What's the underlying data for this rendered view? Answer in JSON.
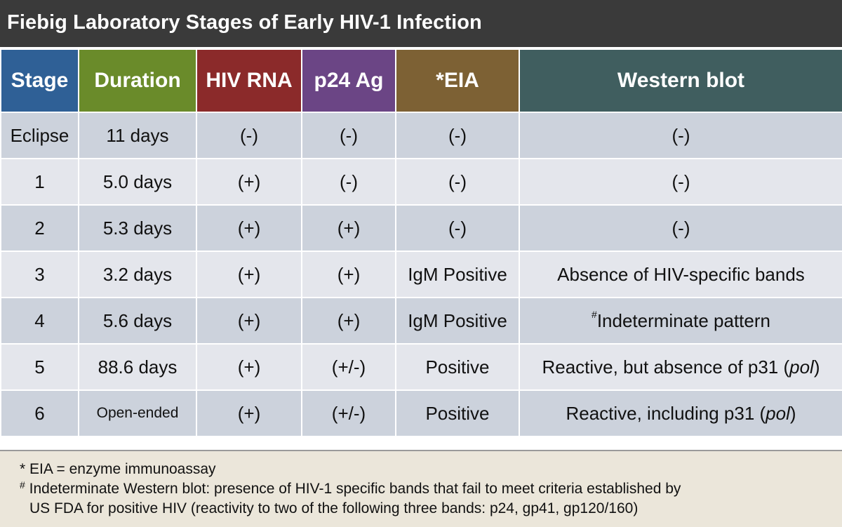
{
  "title": "Fiebig Laboratory Stages of Early HIV-1 Infection",
  "header": {
    "stage": "Stage",
    "duration": "Duration",
    "hiv_rna": "HIV RNA",
    "p24": "p24 Ag",
    "eia": "*EIA",
    "western": "Western blot"
  },
  "header_colors": {
    "stage": "#2f6096",
    "duration": "#6a8b2a",
    "hiv_rna": "#8b2a2a",
    "p24": "#6b4585",
    "eia": "#7d6134",
    "western": "#405e5f"
  },
  "rows": [
    {
      "stage": "Eclipse",
      "duration": "11 days",
      "hiv_rna": "(-)",
      "p24": "(-)",
      "eia": "(-)",
      "western": "(-)"
    },
    {
      "stage": "1",
      "duration": "5.0 days",
      "hiv_rna": "(+)",
      "p24": "(-)",
      "eia": "(-)",
      "western": "(-)"
    },
    {
      "stage": "2",
      "duration": "5.3 days",
      "hiv_rna": "(+)",
      "p24": "(+)",
      "eia": "(-)",
      "western": "(-)"
    },
    {
      "stage": "3",
      "duration": "3.2 days",
      "hiv_rna": "(+)",
      "p24": "(+)",
      "eia": "IgM Positive",
      "western": "Absence of HIV-specific bands"
    },
    {
      "stage": "4",
      "duration": "5.6 days",
      "hiv_rna": "(+)",
      "p24": "(+)",
      "eia": "IgM Positive",
      "western_mark": "#",
      "western": "Indeterminate pattern"
    },
    {
      "stage": "5",
      "duration": "88.6 days",
      "hiv_rna": "(+)",
      "p24": "(+/-)",
      "eia": "Positive",
      "western_pre": "Reactive, but absence of p31 (",
      "western_italic": "pol",
      "western_post": ")"
    },
    {
      "stage": "6",
      "duration": "Open-ended",
      "hiv_rna": "(+)",
      "p24": "(+/-)",
      "eia": "Positive",
      "western_pre": "Reactive, including p31 (",
      "western_italic": "pol",
      "western_post": ")"
    }
  ],
  "footnotes": {
    "eia": "* EIA = enzyme immunoassay",
    "wb_mark": "#",
    "wb_line1": " Indeterminate Western blot: presence of HIV-1 specific bands that fail to meet criteria established by",
    "wb_line2": "US FDA for positive HIV (reactivity to two of the following three bands: p24, gp41, gp120/160)"
  }
}
